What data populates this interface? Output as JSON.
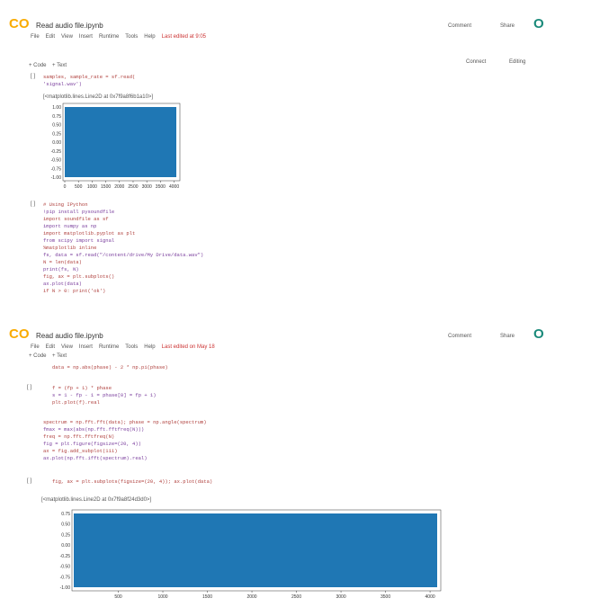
{
  "top": {
    "logo": "CO",
    "title": "Read audio file.ipynb",
    "menu": [
      "File",
      "Edit",
      "View",
      "Insert",
      "Runtime",
      "Tools",
      "Help",
      "Last edited at 9:05"
    ],
    "comment": "Comment",
    "share": "Share",
    "avatar": "O",
    "toolbar": [
      "+ Code",
      "+ Text"
    ],
    "connect": "Connect",
    "editing": "Editing",
    "cell1": {
      "prompt": "[ ]",
      "code": [
        "samples, sample_rate = sf.read(",
        "'signal.wav')"
      ],
      "output": "[<matplotlib.lines.Line2D at 0x7f9a8f6b1a10>]"
    },
    "plot1": {
      "xticks": [
        0,
        500,
        1000,
        1500,
        2000,
        2500,
        3000,
        3500,
        4000
      ],
      "yticks": [
        "1.00",
        "0.75",
        "0.50",
        "0.25",
        "0.00",
        "-0.25",
        "-0.50",
        "-0.75",
        "-1.00"
      ]
    },
    "cell2": {
      "prompt": "[ ]",
      "code": [
        "# Using IPython",
        "!pip install pysoundfile",
        "import soundfile as sf",
        "import numpy as np",
        "import matplotlib.pyplot as plt",
        "from scipy import signal",
        "%matplotlib inline",
        "fs, data = sf.read(\"/content/drive/My Drive/data.wav\")",
        "N = len(data)",
        "print(fs, N)",
        "fig, ax = plt.subplots()",
        "ax.plot(data)",
        "if N > 0: print('ok')"
      ]
    }
  },
  "bottom": {
    "logo": "CO",
    "title": "Read audio file.ipynb",
    "menu": [
      "File",
      "Edit",
      "View",
      "Insert",
      "Runtime",
      "Tools",
      "Help",
      "Last edited on May 18"
    ],
    "comment": "Comment",
    "share": "Share",
    "avatar": "O",
    "toolbar": [
      "+ Code",
      "+ Text"
    ],
    "code0": "data = np.abs(phase) - 2 * np.pi(phase)",
    "cell3": {
      "prompt": "[ ]",
      "code": [
        "f = (fp + 1) * phase",
        "s = 1 - fp - 1 = phase[0] = fp + 1)",
        "plt.plot(f).real"
      ]
    },
    "cell4": {
      "code": [
        "spectrum = np.fft.fft(data); phase = np.angle(spectrum)",
        "fmax = max(abs(np.fft.fftfreq(N)))",
        "freq = np.fft.fftfreq(N)",
        "fig = plt.figure(figsize=(20, 4))",
        "ax = fig.add_subplot(111)",
        "ax.plot(np.fft.ifft(spectrum).real)"
      ]
    },
    "cell5": {
      "prompt": "[ ]",
      "code": "fig, ax = plt.subplots(figsize=(20, 4)); ax.plot(data)",
      "output": "[<matplotlib.lines.Line2D at 0x7f9a8f24d3d0>]"
    },
    "plot2": {
      "xticks": [
        500,
        1000,
        1500,
        2000,
        2500,
        3000,
        3500,
        4000
      ],
      "yticks": [
        "0.75",
        "0.50",
        "0.25",
        "0.00",
        "-0.25",
        "-0.50",
        "-0.75",
        "-1.00"
      ]
    }
  }
}
